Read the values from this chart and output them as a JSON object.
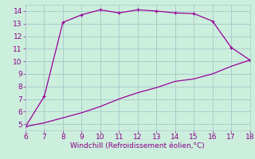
{
  "xlabel": "Windchill (Refroidissement éolien,°C)",
  "line1_x": [
    6,
    7,
    8,
    9,
    10,
    11,
    12,
    13,
    14,
    15,
    16,
    17,
    18
  ],
  "line1_y": [
    4.8,
    7.2,
    13.1,
    13.7,
    14.1,
    13.85,
    14.1,
    14.0,
    13.85,
    13.8,
    13.2,
    11.1,
    10.1
  ],
  "line2_x": [
    6,
    7,
    8,
    9,
    10,
    11,
    12,
    13,
    14,
    15,
    16,
    17,
    18
  ],
  "line2_y": [
    4.8,
    5.1,
    5.5,
    5.9,
    6.4,
    7.0,
    7.5,
    7.9,
    8.4,
    8.6,
    9.0,
    9.6,
    10.1
  ],
  "line_color": "#990099",
  "bg_color": "#cceedd",
  "grid_color": "#aacccc",
  "xlim": [
    6,
    18
  ],
  "ylim": [
    4.5,
    14.5
  ],
  "xticks": [
    6,
    7,
    8,
    9,
    10,
    11,
    12,
    13,
    14,
    15,
    16,
    17,
    18
  ],
  "yticks": [
    5,
    6,
    7,
    8,
    9,
    10,
    11,
    12,
    13,
    14
  ],
  "tick_color": "#880088",
  "tick_fontsize": 6.5,
  "xlabel_fontsize": 6.5
}
